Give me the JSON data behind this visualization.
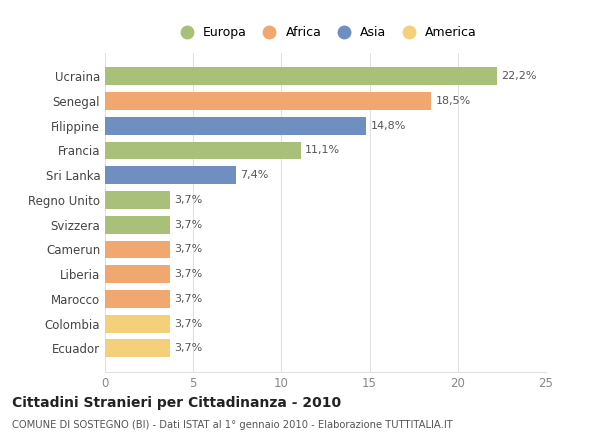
{
  "categories": [
    "Ecuador",
    "Colombia",
    "Marocco",
    "Liberia",
    "Camerun",
    "Svizzera",
    "Regno Unito",
    "Sri Lanka",
    "Francia",
    "Filippine",
    "Senegal",
    "Ucraina"
  ],
  "values": [
    3.7,
    3.7,
    3.7,
    3.7,
    3.7,
    3.7,
    3.7,
    7.4,
    11.1,
    14.8,
    18.5,
    22.2
  ],
  "labels": [
    "3,7%",
    "3,7%",
    "3,7%",
    "3,7%",
    "3,7%",
    "3,7%",
    "3,7%",
    "7,4%",
    "11,1%",
    "14,8%",
    "18,5%",
    "22,2%"
  ],
  "colors": [
    "#f5d07a",
    "#f5d07a",
    "#f0a870",
    "#f0a870",
    "#f0a870",
    "#a8c07a",
    "#a8c07a",
    "#6e8fc0",
    "#a8c07a",
    "#6e8fc0",
    "#f0a870",
    "#a8c07a"
  ],
  "legend_labels": [
    "Europa",
    "Africa",
    "Asia",
    "America"
  ],
  "legend_colors": [
    "#a8c07a",
    "#f0a870",
    "#6e8fc0",
    "#f5d07a"
  ],
  "title": "Cittadini Stranieri per Cittadinanza - 2010",
  "subtitle": "COMUNE DI SOSTEGNO (BI) - Dati ISTAT al 1° gennaio 2010 - Elaborazione TUTTITALIA.IT",
  "xlim": [
    0,
    25
  ],
  "xticks": [
    0,
    5,
    10,
    15,
    20,
    25
  ],
  "bar_height": 0.72,
  "background_color": "#ffffff",
  "grid_color": "#e0e0e0"
}
